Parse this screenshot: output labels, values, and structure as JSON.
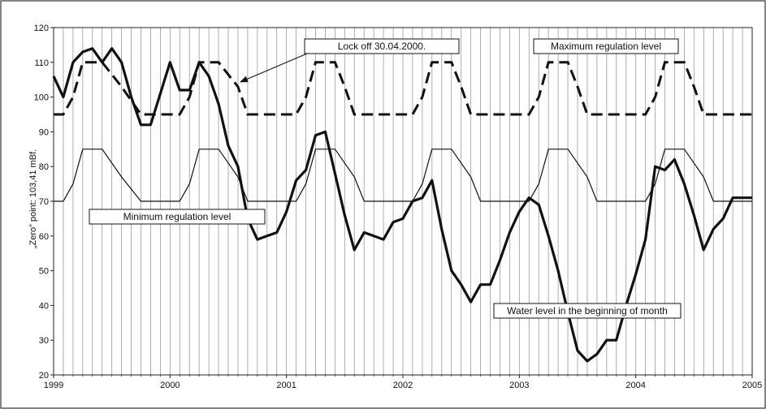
{
  "chart_data": {
    "type": "line",
    "ylabel": "„Zero” point: 103,41 mBf.",
    "xlabel": "",
    "xlim": [
      1999,
      2005
    ],
    "ylim": [
      20,
      120
    ],
    "x_ticks": [
      "1999",
      "2000",
      "2001",
      "2002",
      "2003",
      "2004",
      "2005"
    ],
    "y_ticks": [
      20,
      30,
      40,
      50,
      60,
      70,
      80,
      90,
      100,
      110,
      120
    ],
    "grid": "vertical monthly lines",
    "annotations": [
      {
        "id": "lock",
        "text": "Lock off 30.04.2000."
      },
      {
        "id": "max",
        "text": "Maximum regulation level"
      },
      {
        "id": "min",
        "text": "Minimum regulation level"
      },
      {
        "id": "water",
        "text": "Water level in the beginning of month"
      }
    ],
    "series": [
      {
        "name": "Water level in the beginning of month",
        "style": "thick",
        "x": [
          1999.0,
          1999.083,
          1999.167,
          1999.25,
          1999.333,
          1999.417,
          1999.5,
          1999.583,
          1999.667,
          1999.75,
          1999.833,
          1999.917,
          2000.0,
          2000.083,
          2000.167,
          2000.25,
          2000.333,
          2000.417,
          2000.5,
          2000.583,
          2000.667,
          2000.75,
          2000.833,
          2000.917,
          2001.0,
          2001.083,
          2001.167,
          2001.25,
          2001.333,
          2001.417,
          2001.5,
          2001.583,
          2001.667,
          2001.75,
          2001.833,
          2001.917,
          2002.0,
          2002.083,
          2002.167,
          2002.25,
          2002.333,
          2002.417,
          2002.5,
          2002.583,
          2002.667,
          2002.75,
          2002.833,
          2002.917,
          2003.0,
          2003.083,
          2003.167,
          2003.25,
          2003.333,
          2003.417,
          2003.5,
          2003.583,
          2003.667,
          2003.75,
          2003.833,
          2003.917,
          2004.0,
          2004.083,
          2004.167,
          2004.25,
          2004.333,
          2004.417,
          2004.5,
          2004.583,
          2004.667,
          2004.75,
          2004.833,
          2004.917,
          2005.0
        ],
        "values": [
          106,
          100,
          110,
          113,
          114,
          110,
          114,
          110,
          100,
          92,
          92,
          101,
          110,
          102,
          102,
          110,
          106,
          98,
          86,
          80,
          65,
          59,
          60,
          61,
          67,
          76,
          79,
          89,
          90,
          78,
          66,
          56,
          61,
          60,
          59,
          64,
          65,
          70,
          71,
          76,
          62,
          50,
          46,
          41,
          46,
          46,
          53,
          61,
          67,
          71,
          69,
          60,
          50,
          38,
          27,
          24,
          26,
          30,
          30,
          40,
          49,
          59,
          80,
          79,
          82,
          75,
          66,
          56,
          62,
          65,
          71,
          71,
          71
        ]
      },
      {
        "name": "Maximum regulation level",
        "style": "dashed",
        "x": [
          1999.0,
          1999.083,
          1999.167,
          1999.25,
          1999.333,
          1999.417,
          1999.583,
          1999.75,
          1999.833,
          2000.0,
          2000.083,
          2000.167,
          2000.25,
          2000.333,
          2000.417,
          2000.583,
          2000.667,
          2000.833,
          2001.0,
          2001.083,
          2001.167,
          2001.25,
          2001.333,
          2001.417,
          2001.5,
          2001.583,
          2001.667,
          2001.833,
          2002.0,
          2002.083,
          2002.167,
          2002.25,
          2002.333,
          2002.417,
          2002.5,
          2002.583,
          2002.667,
          2002.833,
          2003.0,
          2003.083,
          2003.167,
          2003.25,
          2003.333,
          2003.417,
          2003.5,
          2003.583,
          2003.667,
          2003.833,
          2004.0,
          2004.083,
          2004.167,
          2004.25,
          2004.333,
          2004.417,
          2004.5,
          2004.583,
          2004.667,
          2004.833,
          2005.0
        ],
        "values": [
          95,
          95,
          100,
          110,
          110,
          110,
          103,
          95,
          95,
          95,
          95,
          100,
          110,
          110,
          110,
          103,
          95,
          95,
          95,
          95,
          100,
          110,
          110,
          110,
          103,
          95,
          95,
          95,
          95,
          95,
          100,
          110,
          110,
          110,
          103,
          95,
          95,
          95,
          95,
          95,
          100,
          110,
          110,
          110,
          103,
          95,
          95,
          95,
          95,
          95,
          100,
          110,
          110,
          110,
          103,
          95,
          95,
          95,
          95
        ]
      },
      {
        "name": "Minimum regulation level",
        "style": "thin",
        "x": [
          1999.0,
          1999.083,
          1999.167,
          1999.25,
          1999.333,
          1999.417,
          1999.583,
          1999.75,
          2000.0,
          2000.083,
          2000.167,
          2000.25,
          2000.333,
          2000.417,
          2000.583,
          2000.667,
          2001.0,
          2001.083,
          2001.167,
          2001.25,
          2001.333,
          2001.417,
          2001.583,
          2001.667,
          2002.0,
          2002.083,
          2002.167,
          2002.25,
          2002.333,
          2002.417,
          2002.583,
          2002.667,
          2003.0,
          2003.083,
          2003.167,
          2003.25,
          2003.333,
          2003.417,
          2003.583,
          2003.667,
          2004.0,
          2004.083,
          2004.167,
          2004.25,
          2004.333,
          2004.417,
          2004.583,
          2004.667,
          2005.0
        ],
        "values": [
          70,
          70,
          75,
          85,
          85,
          85,
          77,
          70,
          70,
          70,
          75,
          85,
          85,
          85,
          77,
          70,
          70,
          70,
          75,
          85,
          85,
          85,
          77,
          70,
          70,
          70,
          75,
          85,
          85,
          85,
          77,
          70,
          70,
          70,
          75,
          85,
          85,
          85,
          77,
          70,
          70,
          70,
          75,
          85,
          85,
          85,
          77,
          70,
          70
        ]
      }
    ]
  }
}
